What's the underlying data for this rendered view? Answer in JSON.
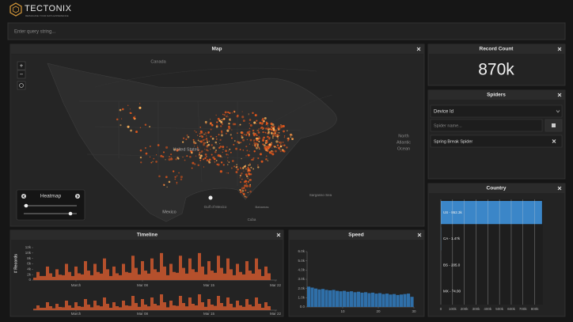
{
  "header": {
    "logo": "TECTONIX",
    "tagline": "REIMAGINE YOUR DATA EXPERIENCE"
  },
  "search": {
    "placeholder": "Enter query string..."
  },
  "map": {
    "title": "Map",
    "zoom_in": "+",
    "zoom_out": "−",
    "labels": {
      "canada": "Canada",
      "united_states": "United States",
      "mexico": "Mexico",
      "gulf": "Gulf of Mexico",
      "cuba": "Cuba",
      "bahamas": "Bahamas",
      "sargasso": "Sargasso Sea",
      "ocean": [
        "North",
        "Atlantic",
        "Ocean"
      ]
    },
    "layer_control": {
      "label": "Heatmap"
    }
  },
  "record_count": {
    "title": "Record Count",
    "value": "870k"
  },
  "spiders": {
    "title": "Spiders",
    "select": "Device Id",
    "input_placeholder": "Spider name...",
    "items": [
      "Spring Break Spider"
    ]
  },
  "country": {
    "title": "Country",
    "type": "bar",
    "orientation": "horizontal",
    "values": [
      862300,
      1470,
      205,
      74
    ],
    "value_labels": [
      "US - 862.3k",
      "CA - 1.47k",
      "BS - 205.0",
      "MX - 74.00"
    ],
    "colors": [
      "#3b86c8",
      "#3b86c8",
      "#3b86c8",
      "#3b86c8"
    ],
    "xlim": [
      0,
      870000
    ],
    "xticks": [
      0,
      {
        "value": 100000,
        "label": "100k"
      },
      {
        "value": 200000,
        "label": "200k"
      },
      {
        "value": 300000,
        "label": "300k"
      },
      {
        "value": 400000,
        "label": "400k"
      },
      {
        "value": 500000,
        "label": "500k"
      },
      {
        "value": 600000,
        "label": "600k"
      },
      {
        "value": 700000,
        "label": "700k"
      },
      {
        "value": 800000,
        "label": "800k"
      }
    ],
    "grid": true
  },
  "timeline": {
    "title": "Timeline",
    "type": "bar",
    "ylabel": "# Records",
    "color": "#b5502c",
    "values": [
      900,
      3000,
      1500,
      1500,
      5000,
      2500,
      1200,
      4000,
      2000,
      1800,
      6000,
      3000,
      1500,
      5000,
      2500,
      2100,
      7000,
      3500,
      1800,
      6000,
      3000,
      2400,
      8000,
      4000,
      1500,
      5000,
      2500,
      1800,
      6000,
      3000,
      2700,
      9000,
      4500,
      2100,
      7000,
      3500,
      2400,
      8000,
      4000,
      3000,
      10000,
      5000,
      1800,
      6000,
      3000,
      2700,
      9000,
      4500,
      2400,
      8000,
      4000,
      3000,
      10000,
      5000,
      2100,
      7000,
      3500,
      2700,
      9000,
      4500,
      2400,
      8000,
      4000,
      1800,
      6000,
      3000,
      2100,
      7000,
      3500,
      2400,
      8000,
      4000,
      1500,
      5000,
      2500
    ],
    "xlim": [
      0,
      77
    ],
    "xticks": [
      {
        "value": 13.5,
        "label": "March"
      },
      {
        "value": 34.5,
        "label": "Mar 08"
      },
      {
        "value": 55.5,
        "label": "Mar 15"
      },
      {
        "value": 76.5,
        "label": "Mar 22"
      }
    ],
    "ylim": [
      0,
      12000
    ],
    "yticks": [
      0,
      {
        "value": 2000,
        "label": "2k"
      },
      {
        "value": 4000,
        "label": "4k"
      },
      {
        "value": 6000,
        "label": "6k"
      },
      {
        "value": 8000,
        "label": "8k"
      },
      {
        "value": 10000,
        "label": "10k"
      },
      {
        "value": 12000,
        "label": "12k"
      }
    ],
    "overview_xticks": [
      {
        "value": 13.5,
        "label": "March"
      },
      {
        "value": 34.5,
        "label": "Mar 08"
      },
      {
        "value": 55.5,
        "label": "Mar 15"
      },
      {
        "value": 76.5,
        "label": "Mar 22"
      }
    ]
  },
  "speed": {
    "title": "Speed",
    "type": "histogram",
    "color": "#2f6fa8",
    "bins": [
      0,
      1,
      2,
      3,
      4,
      5,
      6,
      7,
      8,
      9,
      10,
      11,
      12,
      13,
      14,
      15,
      16,
      17,
      18,
      19,
      20,
      21,
      22,
      23,
      24,
      25,
      26,
      27,
      28,
      29,
      30
    ],
    "values": [
      2200,
      2100,
      2000,
      1900,
      1950,
      1850,
      1800,
      1850,
      1750,
      1700,
      1750,
      1650,
      1700,
      1600,
      1650,
      1550,
      1600,
      1500,
      1550,
      1450,
      1500,
      1400,
      1450,
      1350,
      1400,
      1300,
      1350,
      1400,
      1450,
      1100
    ],
    "xlim": [
      0,
      30
    ],
    "xticks": [
      10,
      20,
      30
    ],
    "ylim": [
      0,
      6000
    ],
    "yticks": [
      {
        "value": 0,
        "label": "0.0"
      },
      {
        "value": 1000,
        "label": "1.0k"
      },
      {
        "value": 2000,
        "label": "2.0k"
      },
      {
        "value": 3000,
        "label": "3.0k"
      },
      {
        "value": 4000,
        "label": "4.0k"
      },
      {
        "value": 5000,
        "label": "5.0k"
      },
      {
        "value": 6000,
        "label": "6.0k"
      }
    ]
  }
}
